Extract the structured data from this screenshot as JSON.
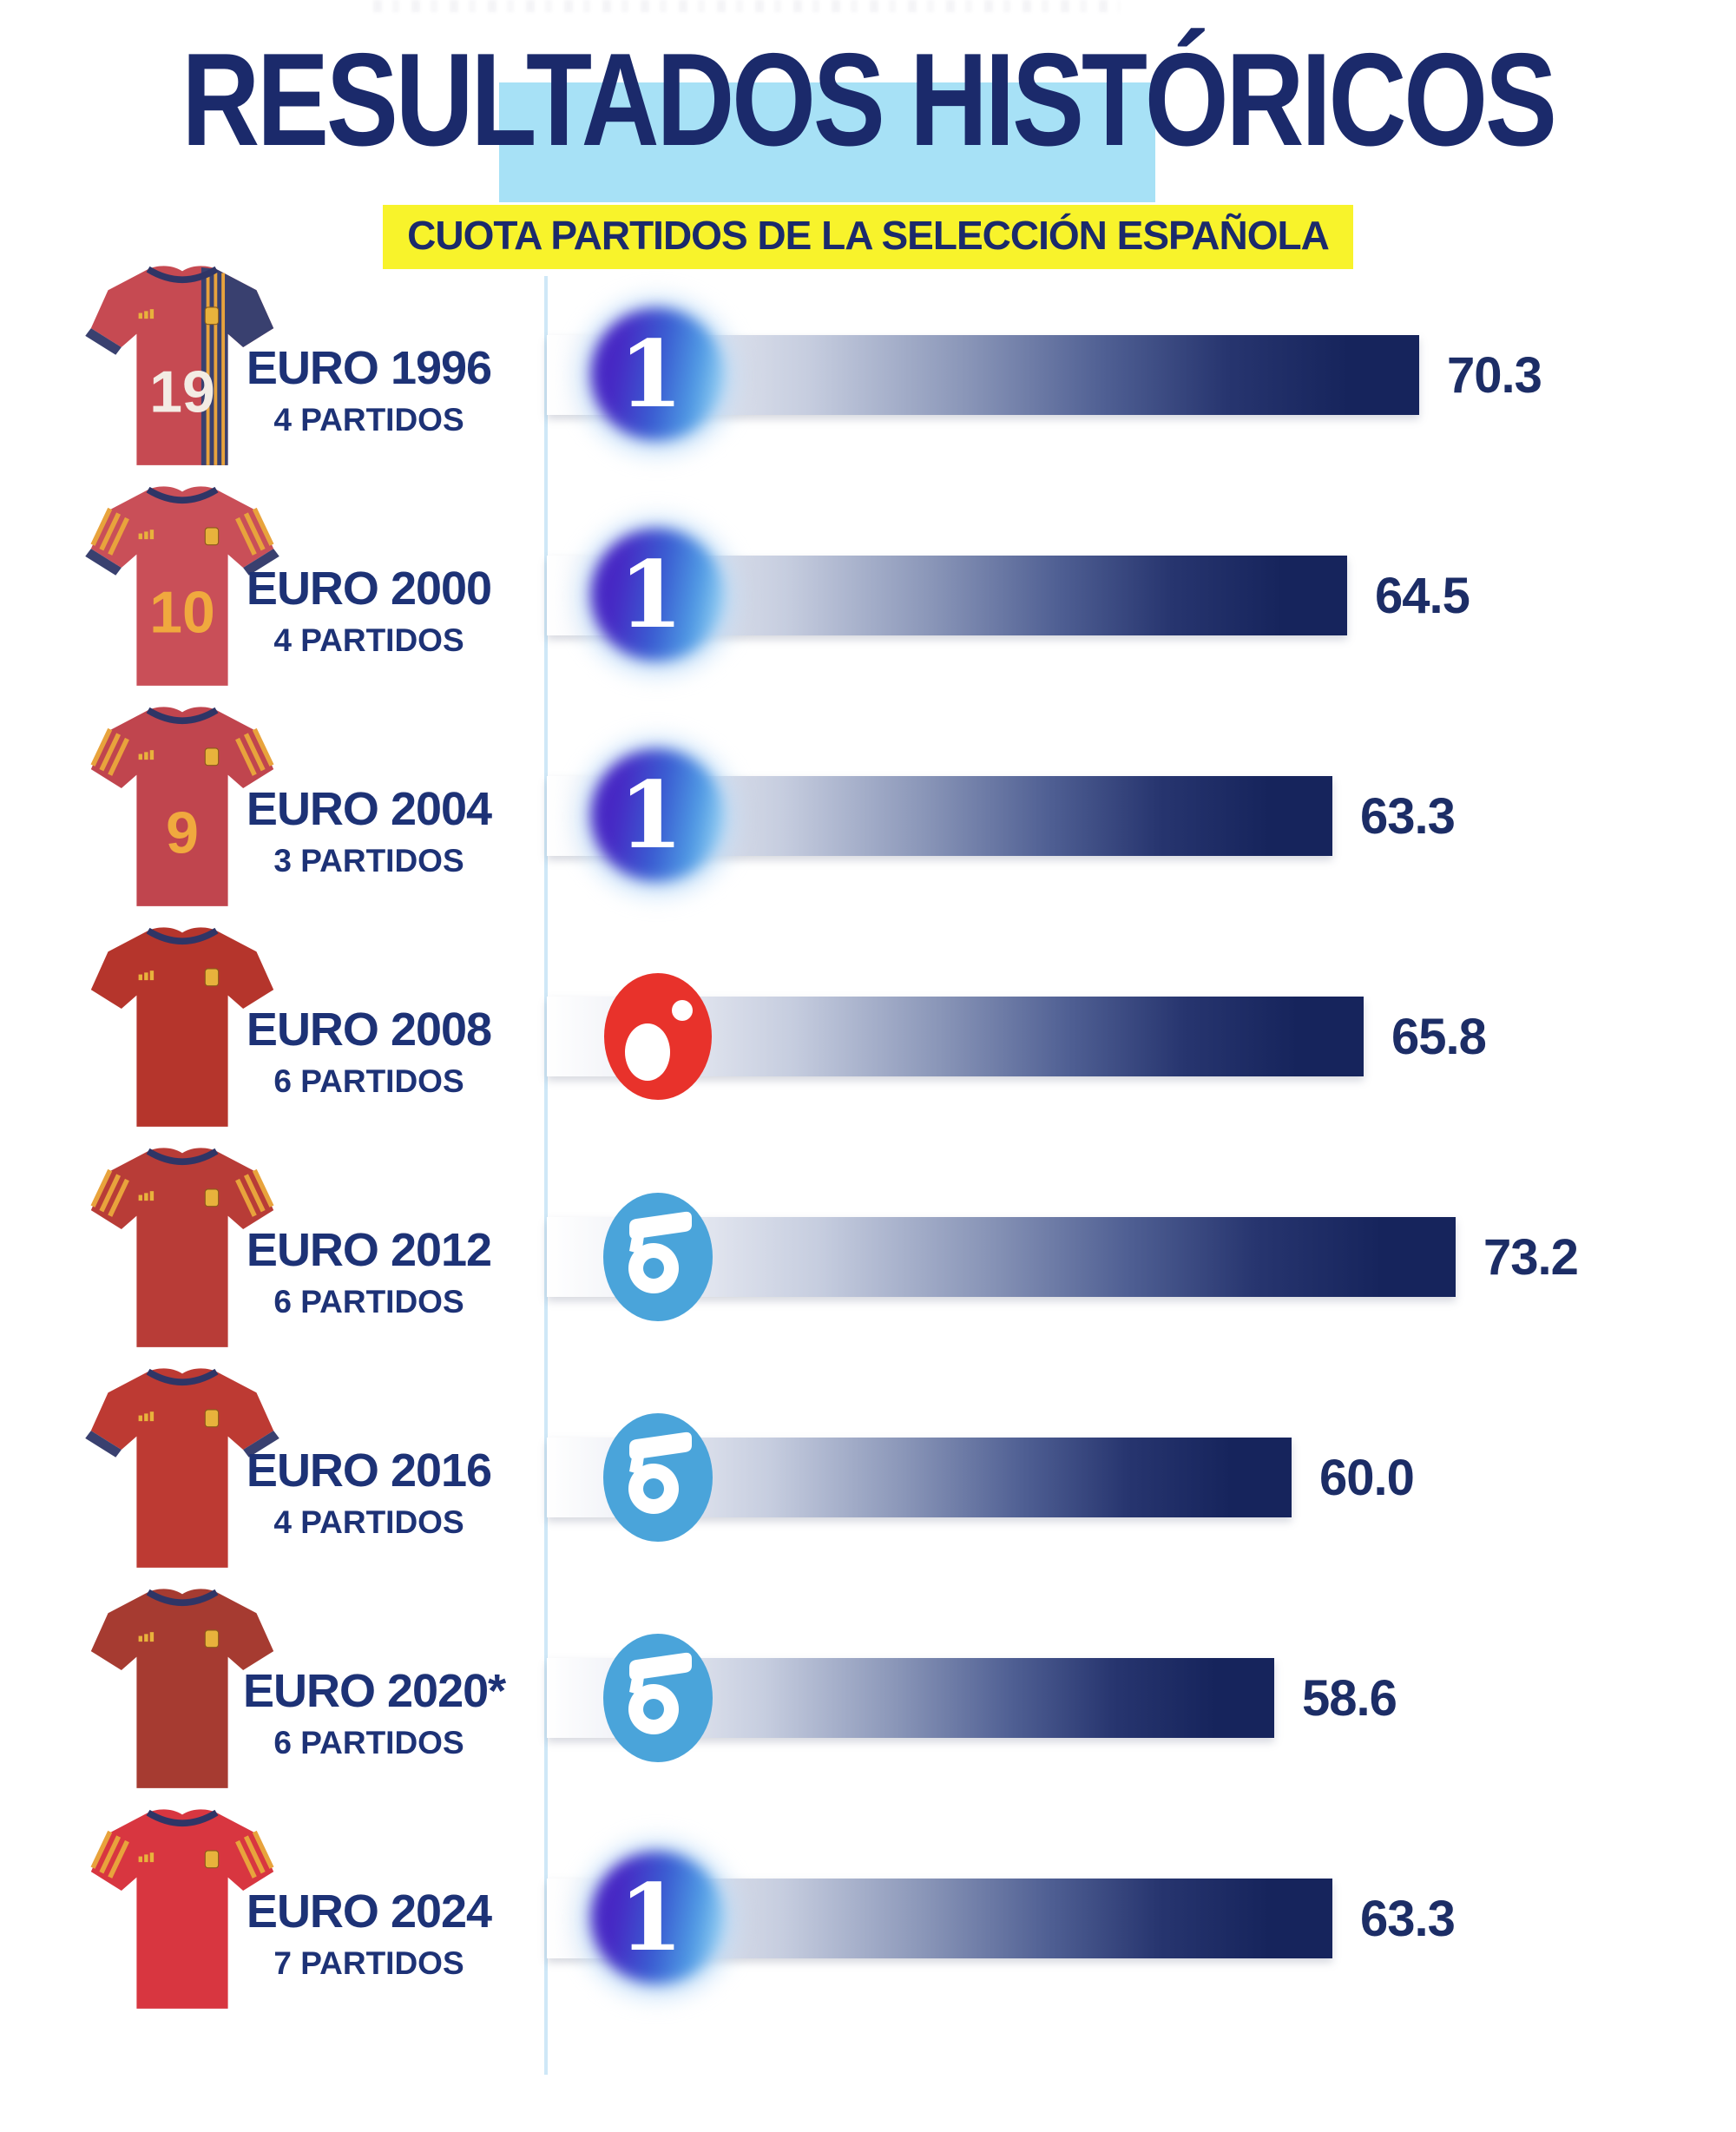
{
  "header": {
    "title": "RESULTADOS HISTÓRICOS",
    "subtitle": "CUOTA PARTIDOS DE LA SELECCIÓN ESPAÑOLA",
    "title_color": "#1b2a6b",
    "title_highlight_color": "#a7e1f6",
    "subtitle_highlight_color": "#f8f32b"
  },
  "chart_data": {
    "type": "bar",
    "orientation": "horizontal",
    "title": "RESULTADOS HISTÓRICOS",
    "subtitle": "CUOTA PARTIDOS DE LA SELECCIÓN ESPAÑOLA",
    "categories": [
      "EURO 1996",
      "EURO 2000",
      "EURO 2004",
      "EURO 2008",
      "EURO 2012",
      "EURO 2016",
      "EURO 2020*",
      "EURO 2024"
    ],
    "values": [
      70.3,
      64.5,
      63.3,
      65.8,
      73.2,
      60.0,
      58.6,
      63.3
    ],
    "value_labels": [
      "70.3",
      "64.5",
      "63.3",
      "65.8",
      "73.2",
      "60.0",
      "58.6",
      "63.3"
    ],
    "matches": [
      "4 PARTIDOS",
      "4 PARTIDOS",
      "3 PARTIDOS",
      "6 PARTIDOS",
      "6 PARTIDOS",
      "4 PARTIDOS",
      "6 PARTIDOS",
      "7 PARTIDOS"
    ],
    "channels": [
      "La 1",
      "La 1",
      "La 1",
      "Cuatro",
      "Telecinco",
      "Telecinco",
      "Telecinco",
      "La 1"
    ],
    "xlim": [
      0,
      75
    ],
    "grid": false,
    "legend": false,
    "bar_gradient": [
      "#ffffff",
      "#16245c"
    ]
  },
  "channel_colors": {
    "la1_purple": "#4727c4",
    "la1_blue": "#3a5ed2",
    "cuatro_red": "#e8322b",
    "telecinco_blue": "#4aa4da"
  },
  "rows": [
    {
      "year": "EURO 1996",
      "matches": "4 PARTIDOS",
      "value": 70.3,
      "value_label": "70.3",
      "channel": "la1",
      "jersey": {
        "base": "#c64a52",
        "number": "19",
        "number_color": "#f3ece4",
        "side_panel": true,
        "stripes": false,
        "cuffs": ""
      }
    },
    {
      "year": "EURO 2000",
      "matches": "4 PARTIDOS",
      "value": 64.5,
      "value_label": "64.5",
      "channel": "la1",
      "jersey": {
        "base": "#c94f58",
        "number": "10",
        "number_color": "#f0a93e",
        "side_panel": false,
        "stripes": true,
        "cuffs": "#39406f"
      }
    },
    {
      "year": "EURO 2004",
      "matches": "3 PARTIDOS",
      "value": 63.3,
      "value_label": "63.3",
      "channel": "la1",
      "jersey": {
        "base": "#c0454e",
        "number": "9",
        "number_color": "#f0a93e",
        "side_panel": false,
        "stripes": true,
        "cuffs": ""
      }
    },
    {
      "year": "EURO 2008",
      "matches": "6 PARTIDOS",
      "value": 65.8,
      "value_label": "65.8",
      "channel": "cuatro",
      "jersey": {
        "base": "#b5352c",
        "number": "",
        "number_color": "#ffffff",
        "side_panel": false,
        "stripes": false,
        "cuffs": ""
      }
    },
    {
      "year": "EURO 2012",
      "matches": "6 PARTIDOS",
      "value": 73.2,
      "value_label": "73.2",
      "channel": "tele",
      "jersey": {
        "base": "#b83c37",
        "number": "",
        "number_color": "#ffffff",
        "side_panel": false,
        "stripes": true,
        "cuffs": ""
      }
    },
    {
      "year": "EURO 2016",
      "matches": "4 PARTIDOS",
      "value": 60.0,
      "value_label": "60.0",
      "channel": "tele",
      "jersey": {
        "base": "#bd3a33",
        "number": "",
        "number_color": "#ffffff",
        "side_panel": false,
        "stripes": false,
        "cuffs": "#39406f"
      }
    },
    {
      "year": "EURO 2020*",
      "matches": "6 PARTIDOS",
      "value": 58.6,
      "value_label": "58.6",
      "channel": "tele",
      "jersey": {
        "base": "#a63b31",
        "number": "",
        "number_color": "#ffffff",
        "side_panel": false,
        "stripes": false,
        "cuffs": ""
      }
    },
    {
      "year": "EURO 2024",
      "matches": "7 PARTIDOS",
      "value": 63.3,
      "value_label": "63.3",
      "channel": "la1",
      "jersey": {
        "base": "#d83640",
        "number": "",
        "number_color": "#ffffff",
        "side_panel": false,
        "stripes": true,
        "cuffs": ""
      }
    }
  ]
}
